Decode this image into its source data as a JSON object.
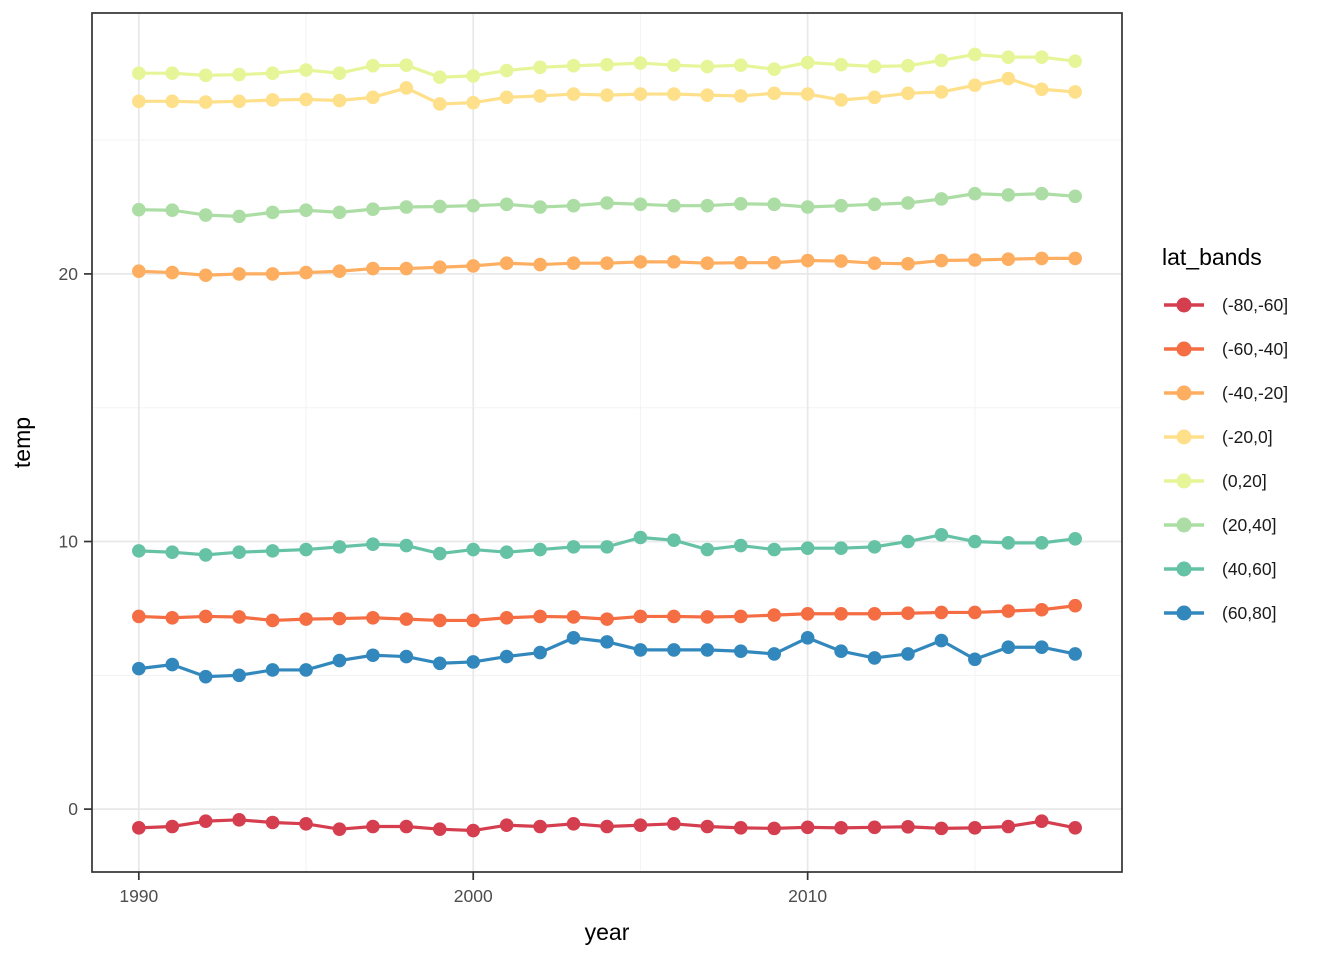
{
  "figure": {
    "background": "#ffffff",
    "panel_background": "#ffffff",
    "panel_border_color": "#333333",
    "grid_major_color": "#e8e8e8",
    "grid_minor_color": "#f3f3f3",
    "tick_color": "#333333",
    "tick_label_color": "#4d4d4d",
    "axis_title_color": "#000000",
    "legend_text_color": "#1a1a1a"
  },
  "chart_data": {
    "type": "line",
    "title": "",
    "xlabel": "year",
    "ylabel": "temp",
    "legend_title": "lat_bands",
    "legend_position": "right",
    "grid": true,
    "xlim": [
      1988.6,
      2019.4
    ],
    "ylim": [
      -2.35,
      29.75
    ],
    "x_ticks": [
      1990,
      2000,
      2010
    ],
    "x_minor_ticks": [
      1995,
      2005,
      2015
    ],
    "y_ticks": [
      0,
      10,
      20
    ],
    "y_minor_ticks": [
      5,
      15,
      25
    ],
    "x": [
      1990,
      1991,
      1992,
      1993,
      1994,
      1995,
      1996,
      1997,
      1998,
      1999,
      2000,
      2001,
      2002,
      2003,
      2004,
      2005,
      2006,
      2007,
      2008,
      2009,
      2010,
      2011,
      2012,
      2013,
      2014,
      2015,
      2016,
      2017,
      2018
    ],
    "series": [
      {
        "name": "(-80,-60]",
        "color": "#d53e4f",
        "values": [
          -0.7,
          -0.65,
          -0.45,
          -0.4,
          -0.5,
          -0.55,
          -0.75,
          -0.65,
          -0.65,
          -0.75,
          -0.8,
          -0.6,
          -0.65,
          -0.55,
          -0.65,
          -0.6,
          -0.55,
          -0.65,
          -0.7,
          -0.72,
          -0.68,
          -0.7,
          -0.68,
          -0.66,
          -0.72,
          -0.7,
          -0.65,
          -0.45,
          -0.7
        ]
      },
      {
        "name": "(-60,-40]",
        "color": "#f46d43",
        "values": [
          7.2,
          7.15,
          7.2,
          7.18,
          7.05,
          7.1,
          7.12,
          7.15,
          7.1,
          7.05,
          7.05,
          7.15,
          7.2,
          7.18,
          7.1,
          7.2,
          7.2,
          7.18,
          7.2,
          7.25,
          7.3,
          7.3,
          7.3,
          7.32,
          7.35,
          7.35,
          7.4,
          7.45,
          7.6
        ]
      },
      {
        "name": "(-40,-20]",
        "color": "#fdae61",
        "values": [
          20.1,
          20.05,
          19.95,
          20.0,
          20.0,
          20.05,
          20.1,
          20.2,
          20.2,
          20.25,
          20.3,
          20.4,
          20.35,
          20.4,
          20.4,
          20.45,
          20.45,
          20.4,
          20.42,
          20.42,
          20.5,
          20.48,
          20.4,
          20.38,
          20.5,
          20.52,
          20.55,
          20.58,
          20.58
        ]
      },
      {
        "name": "(-20,0]",
        "color": "#fee08b",
        "values": [
          26.45,
          26.45,
          26.42,
          26.45,
          26.5,
          26.52,
          26.48,
          26.6,
          26.95,
          26.35,
          26.4,
          26.6,
          26.65,
          26.72,
          26.68,
          26.72,
          26.72,
          26.68,
          26.65,
          26.75,
          26.72,
          26.5,
          26.6,
          26.75,
          26.8,
          27.05,
          27.3,
          26.9,
          26.8
        ]
      },
      {
        "name": "(0,20]",
        "color": "#e6f598",
        "values": [
          27.5,
          27.5,
          27.42,
          27.45,
          27.5,
          27.62,
          27.5,
          27.78,
          27.8,
          27.35,
          27.4,
          27.6,
          27.72,
          27.78,
          27.82,
          27.88,
          27.8,
          27.75,
          27.8,
          27.65,
          27.9,
          27.82,
          27.75,
          27.78,
          27.98,
          28.2,
          28.1,
          28.1,
          27.95
        ]
      },
      {
        "name": "(20,40]",
        "color": "#abdda4",
        "values": [
          22.4,
          22.38,
          22.2,
          22.15,
          22.3,
          22.38,
          22.3,
          22.42,
          22.5,
          22.52,
          22.55,
          22.6,
          22.5,
          22.55,
          22.65,
          22.6,
          22.55,
          22.55,
          22.62,
          22.6,
          22.5,
          22.55,
          22.6,
          22.65,
          22.8,
          23.0,
          22.95,
          23.0,
          22.9
        ]
      },
      {
        "name": "(40,60]",
        "color": "#66c2a5",
        "values": [
          9.65,
          9.6,
          9.5,
          9.6,
          9.65,
          9.7,
          9.8,
          9.9,
          9.85,
          9.55,
          9.7,
          9.6,
          9.7,
          9.8,
          9.8,
          10.15,
          10.05,
          9.7,
          9.85,
          9.7,
          9.75,
          9.75,
          9.8,
          10.0,
          10.25,
          10.0,
          9.95,
          9.95,
          10.1
        ]
      },
      {
        "name": "(60,80]",
        "color": "#3288bd",
        "values": [
          5.25,
          5.4,
          4.95,
          5.0,
          5.2,
          5.2,
          5.55,
          5.75,
          5.7,
          5.45,
          5.5,
          5.7,
          5.85,
          6.4,
          6.25,
          5.95,
          5.95,
          5.95,
          5.9,
          5.8,
          6.4,
          5.9,
          5.65,
          5.8,
          6.3,
          5.6,
          6.05,
          6.05,
          5.8
        ]
      }
    ]
  }
}
